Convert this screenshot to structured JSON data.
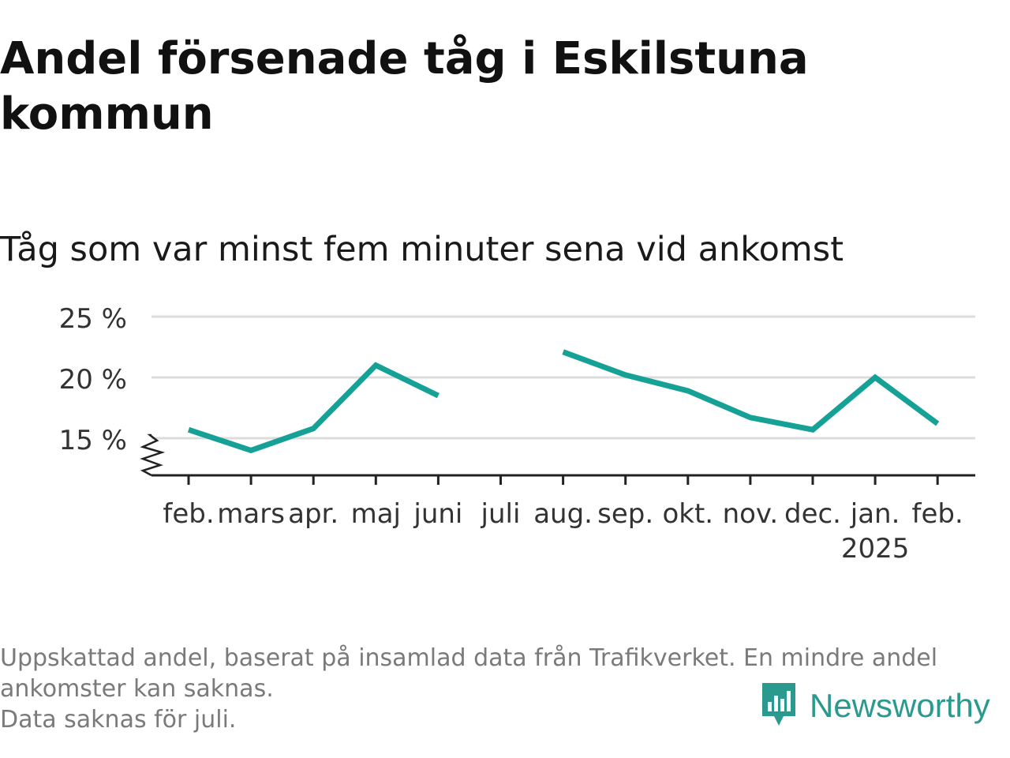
{
  "header": {
    "title": "Andel försenade tåg i Eskilstuna kommun",
    "subtitle": "Tåg som var minst fem minuter sena vid ankomst"
  },
  "footer": {
    "note_1": "Uppskattad andel, baserat på insamlad data från Trafikverket. En mindre andel ankomster kan saknas.",
    "note_2": "Data saknas för juli.",
    "brand": "Newsworthy",
    "brand_icon": "chart-speech-bubble-icon",
    "brand_color": "#2a9a8e"
  },
  "chart_data": {
    "type": "line",
    "categories": [
      "feb.",
      "mars",
      "apr.",
      "maj",
      "juni",
      "juli",
      "aug.",
      "sep.",
      "okt.",
      "nov.",
      "dec.",
      "jan.",
      "feb."
    ],
    "year_label": "2025",
    "year_label_under": "jan.",
    "series": [
      {
        "values": [
          15.7,
          14.0,
          15.8,
          21.0,
          18.5,
          null,
          22.1,
          20.2,
          18.9,
          16.7,
          15.7,
          20.0,
          16.2
        ],
        "color": "#16a196"
      }
    ],
    "y_ticks": [
      15,
      20,
      25
    ],
    "y_tick_labels": [
      "15 %",
      "20 %",
      "25 %"
    ],
    "ylim": [
      12,
      25
    ],
    "y_axis_break": true,
    "grid": true,
    "legend": "none",
    "xlabel": "",
    "ylabel": ""
  }
}
